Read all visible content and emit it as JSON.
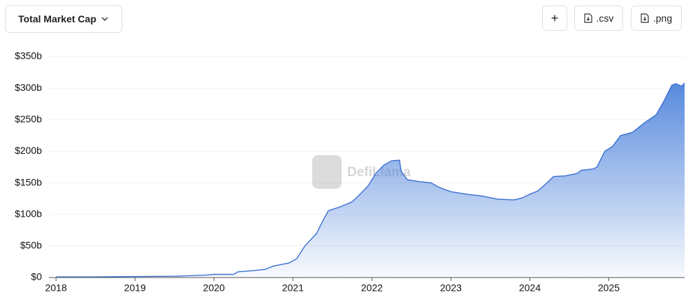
{
  "controls": {
    "metric": "Total Market Cap",
    "add": "+",
    "csv": ".csv",
    "png": ".png"
  },
  "watermark": "DefiLlama",
  "chart_data": {
    "type": "area",
    "series": [
      {
        "color": "#3a6fd1",
        "x": [
          2018.0,
          2018.5,
          2019.0,
          2019.5,
          2019.9,
          2020.0,
          2020.25,
          2020.3,
          2020.5,
          2020.65,
          2020.75,
          2020.95,
          2021.05,
          2021.15,
          2021.3,
          2021.4,
          2021.45,
          2021.6,
          2021.75,
          2021.85,
          2021.95,
          2022.05,
          2022.15,
          2022.25,
          2022.35,
          2022.37,
          2022.45,
          2022.6,
          2022.75,
          2022.85,
          2023.0,
          2023.2,
          2023.4,
          2023.6,
          2023.8,
          2023.9,
          2024.0,
          2024.1,
          2024.2,
          2024.3,
          2024.45,
          2024.6,
          2024.65,
          2024.8,
          2024.85,
          2024.95,
          2025.05,
          2025.15,
          2025.3,
          2025.45,
          2025.6,
          2025.7,
          2025.8,
          2025.85,
          2025.92,
          2025.96
        ],
        "values": [
          1,
          1,
          1.5,
          2,
          4,
          5,
          5,
          9,
          11,
          13,
          18,
          23,
          30,
          50,
          70,
          95,
          106,
          112,
          120,
          132,
          145,
          165,
          178,
          185,
          186,
          168,
          155,
          152,
          150,
          143,
          136,
          132,
          129,
          124,
          123,
          126,
          132,
          137,
          148,
          160,
          161,
          165,
          170,
          172,
          175,
          200,
          208,
          225,
          230,
          245,
          258,
          280,
          305,
          307,
          303,
          308
        ]
      }
    ],
    "xlim": [
      2017.91,
      2025.96
    ],
    "xticks": [
      2018,
      2019,
      2020,
      2021,
      2022,
      2023,
      2024,
      2025
    ],
    "ylim": [
      0,
      350
    ],
    "yticks": [
      {
        "value": 0,
        "label": "$0"
      },
      {
        "value": 50,
        "label": "$50b"
      },
      {
        "value": 100,
        "label": "$100b"
      },
      {
        "value": 150,
        "label": "$150b"
      },
      {
        "value": 200,
        "label": "$200b"
      },
      {
        "value": 250,
        "label": "$250b"
      },
      {
        "value": 300,
        "label": "$300b"
      },
      {
        "value": 350,
        "label": "$350b"
      }
    ],
    "grid": true
  }
}
